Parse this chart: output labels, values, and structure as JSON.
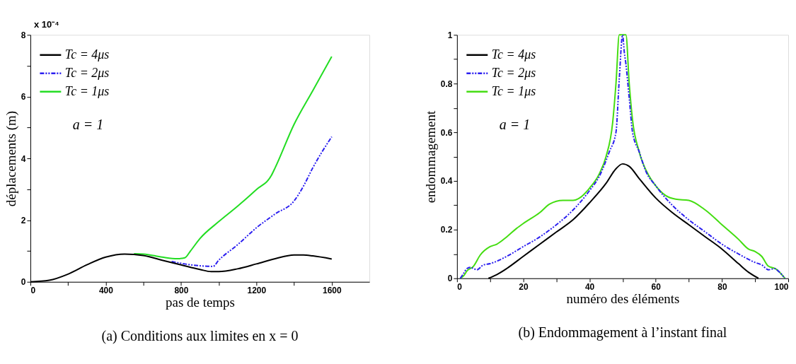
{
  "chart_data": [
    {
      "type": "line",
      "title": "(a) Conditions aux limites en x = 0",
      "xlabel": "pas de temps",
      "ylabel": "déplacements (m)",
      "xlim": [
        0,
        1800
      ],
      "xticks": [
        0,
        {
          "value": 200,
          "label": null
        },
        400,
        {
          "value": 600,
          "label": null
        },
        800,
        {
          "value": 1000,
          "label": null
        },
        1200,
        {
          "value": 1400,
          "label": null
        },
        1600
      ],
      "ylim": [
        0,
        8
      ],
      "yticks": [
        0,
        {
          "value": 1,
          "label": null
        },
        2,
        {
          "value": 3,
          "label": null
        },
        4,
        {
          "value": 5,
          "label": null
        },
        6,
        {
          "value": 7,
          "label": null
        },
        8
      ],
      "grid": false,
      "legend": "top left",
      "annotations": [
        "x 10⁻⁴",
        "a = 1"
      ],
      "series": [
        {
          "name": "Tc = 4μs",
          "color": "#000000",
          "line_style": "solid",
          "x": [
            0,
            100,
            200,
            300,
            400,
            500,
            600,
            700,
            800,
            900,
            960,
            1000,
            1100,
            1200,
            1300,
            1400,
            1450,
            1500,
            1600
          ],
          "values": [
            0,
            0.05,
            0.25,
            0.55,
            0.8,
            0.9,
            0.85,
            0.7,
            0.55,
            0.4,
            0.33,
            0.33,
            0.42,
            0.58,
            0.75,
            0.87,
            0.87,
            0.84,
            0.74
          ]
        },
        {
          "name": "Tc = 2μs",
          "color": "#2b1ff0",
          "line_style": "dashed",
          "x": [
            750,
            800,
            900,
            970,
            1000,
            1100,
            1200,
            1300,
            1400,
            1450,
            1500,
            1600
          ],
          "values": [
            0.66,
            0.6,
            0.52,
            0.5,
            0.7,
            1.2,
            1.75,
            2.2,
            2.62,
            3.1,
            3.7,
            4.7
          ]
        },
        {
          "name": "Tc = 1μs",
          "color": "#22dd22",
          "line_style": "solid",
          "x": [
            550,
            600,
            700,
            780,
            820,
            850,
            900,
            1000,
            1100,
            1200,
            1280,
            1300,
            1400,
            1500,
            1600
          ],
          "values": [
            0.91,
            0.9,
            0.8,
            0.75,
            0.78,
            1.0,
            1.4,
            1.95,
            2.45,
            2.99,
            3.45,
            3.7,
            5.1,
            6.2,
            7.3
          ]
        }
      ]
    },
    {
      "type": "line",
      "title": "(b) Endommagement à l’instant final",
      "xlabel": "numéro des éléments",
      "ylabel": "endommagement",
      "xlim": [
        0,
        100
      ],
      "xticks": [
        0,
        {
          "value": 10,
          "label": null
        },
        20,
        {
          "value": 30,
          "label": null
        },
        40,
        {
          "value": 50,
          "label": null
        },
        60,
        {
          "value": 70,
          "label": null
        },
        80,
        {
          "value": 90,
          "label": null
        },
        100
      ],
      "ylim": [
        0,
        1
      ],
      "yticks": [
        0,
        {
          "value": 0.1,
          "label": null
        },
        0.2,
        {
          "value": 0.3,
          "label": null
        },
        0.4,
        {
          "value": 0.5,
          "label": null
        },
        0.6,
        {
          "value": 0.7,
          "label": null
        },
        0.8,
        {
          "value": 0.9,
          "label": null
        },
        1
      ],
      "grid": false,
      "legend": "top left",
      "annotations": [
        "a = 1"
      ],
      "series": [
        {
          "name": "Tc = 4μs",
          "color": "#000000",
          "line_style": "solid",
          "x": [
            9.5,
            12,
            15,
            20,
            25,
            30,
            35,
            40,
            45,
            48,
            50,
            52,
            55,
            60,
            65,
            70,
            75,
            80,
            85,
            88,
            91
          ],
          "values": [
            0,
            0.015,
            0.04,
            0.09,
            0.14,
            0.19,
            0.24,
            0.31,
            0.39,
            0.45,
            0.47,
            0.46,
            0.41,
            0.33,
            0.27,
            0.22,
            0.17,
            0.12,
            0.06,
            0.025,
            0
          ]
        },
        {
          "name": "Tc = 2μs",
          "color": "#2b1ff0",
          "line_style": "dashed",
          "x": [
            1,
            2,
            3,
            4,
            5,
            6,
            8,
            10,
            12,
            15,
            20,
            25,
            30,
            35,
            40,
            43,
            46,
            48,
            49,
            50,
            50.5,
            51,
            52,
            53,
            55,
            57,
            60,
            65,
            70,
            75,
            80,
            85,
            90,
            92,
            94,
            96,
            97,
            99
          ],
          "values": [
            0,
            0.02,
            0.04,
            0.045,
            0.04,
            0.035,
            0.055,
            0.06,
            0.07,
            0.09,
            0.13,
            0.17,
            0.22,
            0.28,
            0.36,
            0.42,
            0.52,
            0.6,
            0.82,
            1.0,
            0.93,
            0.88,
            0.74,
            0.6,
            0.52,
            0.44,
            0.38,
            0.3,
            0.24,
            0.19,
            0.14,
            0.1,
            0.065,
            0.055,
            0.035,
            0.04,
            0.03,
            0
          ]
        },
        {
          "name": "Tc = 1μs",
          "color": "#44dd11",
          "line_style": "solid",
          "x": [
            1,
            2,
            3,
            5,
            7,
            10,
            12,
            15,
            18,
            20,
            25,
            28,
            32,
            35,
            37,
            40,
            43,
            45,
            47,
            48,
            49,
            51,
            52,
            53,
            55,
            58,
            60,
            63,
            66,
            70,
            75,
            80,
            85,
            88,
            90,
            92,
            94,
            96,
            97,
            99
          ],
          "values": [
            0,
            0.01,
            0.03,
            0.05,
            0.095,
            0.13,
            0.14,
            0.17,
            0.205,
            0.225,
            0.27,
            0.305,
            0.32,
            0.32,
            0.33,
            0.37,
            0.43,
            0.5,
            0.64,
            0.8,
            1.0,
            1.0,
            0.8,
            0.65,
            0.52,
            0.42,
            0.38,
            0.34,
            0.325,
            0.32,
            0.28,
            0.22,
            0.16,
            0.12,
            0.11,
            0.09,
            0.05,
            0.04,
            0.03,
            0
          ]
        }
      ]
    }
  ]
}
